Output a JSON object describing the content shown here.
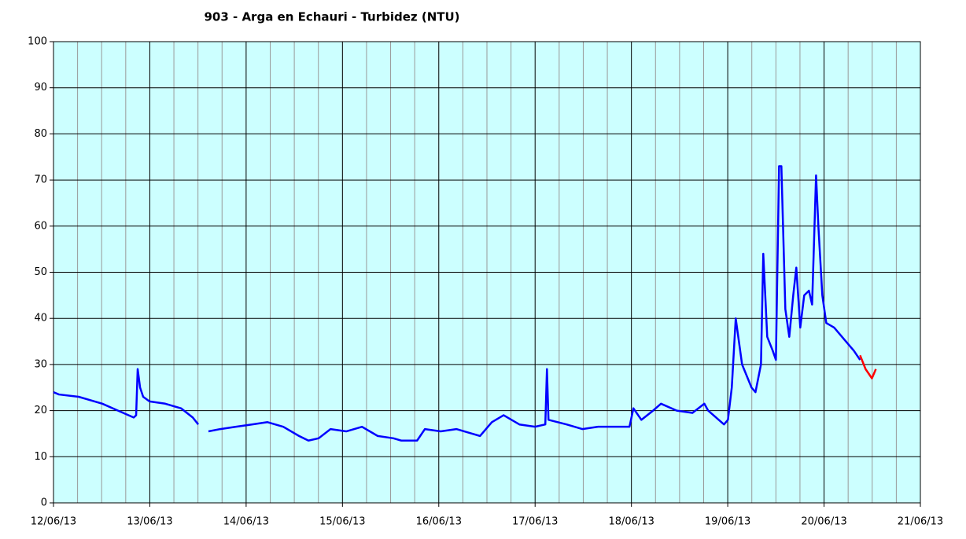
{
  "chart_data": {
    "type": "line",
    "title": "903 - Arga en Echauri - Turbidez (NTU)",
    "xlim": [
      0,
      9
    ],
    "xticks": [
      {
        "value": 0,
        "label": "12/06/13"
      },
      {
        "value": 1,
        "label": "13/06/13"
      },
      {
        "value": 2,
        "label": "14/06/13"
      },
      {
        "value": 3,
        "label": "15/06/13"
      },
      {
        "value": 4,
        "label": "16/06/13"
      },
      {
        "value": 5,
        "label": "17/06/13"
      },
      {
        "value": 6,
        "label": "18/06/13"
      },
      {
        "value": 7,
        "label": "19/06/13"
      },
      {
        "value": 8,
        "label": "20/06/13"
      },
      {
        "value": 9,
        "label": "21/06/13"
      }
    ],
    "xminorticks": [
      0.25,
      0.5,
      0.75,
      1.25,
      1.5,
      1.75,
      2.25,
      2.5,
      2.75,
      3.25,
      3.5,
      3.75,
      4.25,
      4.5,
      4.75,
      5.25,
      5.5,
      5.75,
      6.25,
      6.5,
      6.75,
      7.25,
      7.5,
      7.75,
      8.25,
      8.5,
      8.75
    ],
    "ylim": [
      0,
      100
    ],
    "yticks": [
      0,
      10,
      20,
      30,
      40,
      50,
      60,
      70,
      80,
      90,
      100
    ],
    "grid": true,
    "background": "#ccffff",
    "series": [
      {
        "color": "#0000ff",
        "x": [
          0,
          0.057,
          0.261,
          0.507,
          0.67,
          0.833,
          0.858,
          0.874,
          0.899,
          0.931,
          0.997,
          1.16,
          1.324,
          1.446,
          1.503,
          null,
          1.609,
          1.732,
          1.895,
          2.059,
          2.222,
          2.386,
          2.549,
          2.647,
          2.753,
          2.876,
          3.039,
          3.203,
          3.366,
          3.529,
          3.611,
          3.775,
          3.856,
          4.02,
          4.183,
          4.346,
          4.428,
          4.551,
          4.673,
          4.837,
          5.0,
          5.106,
          5.123,
          5.139,
          5.327,
          5.49,
          5.654,
          5.817,
          5.98,
          6.021,
          6.103,
          6.225,
          6.307,
          6.471,
          6.634,
          6.757,
          6.797,
          6.961,
          7.002,
          7.042,
          7.083,
          7.149,
          7.247,
          7.288,
          7.345,
          7.369,
          7.41,
          7.467,
          7.5,
          7.533,
          7.557,
          7.598,
          7.639,
          7.68,
          7.712,
          7.753,
          7.794,
          7.843,
          7.876,
          7.917,
          7.941,
          7.982,
          8.023,
          8.105,
          8.227,
          8.309,
          8.374
        ],
        "values": [
          24,
          23.5,
          23,
          21.5,
          20,
          18.5,
          19,
          29,
          25,
          23,
          22,
          21.5,
          20.5,
          18.5,
          17,
          null,
          15.5,
          16,
          16.5,
          17,
          17.5,
          16.5,
          14.5,
          13.5,
          14,
          16,
          15.5,
          16.5,
          14.5,
          14,
          13.5,
          13.5,
          16,
          15.5,
          16,
          15,
          14.5,
          17.5,
          19,
          17,
          16.5,
          17,
          29,
          18,
          17,
          16,
          16.5,
          16.5,
          16.5,
          20.5,
          18,
          20,
          21.5,
          20,
          19.5,
          21.5,
          20,
          17,
          18,
          25,
          40,
          30,
          25,
          24,
          30,
          54,
          36,
          33,
          31,
          73,
          73,
          42,
          36,
          45,
          51,
          38,
          45,
          46,
          43,
          71,
          60,
          45,
          39,
          38,
          35,
          33,
          31
        ]
      },
      {
        "color": "#ff0000",
        "x": [
          8.374,
          8.431,
          8.497,
          8.538
        ],
        "values": [
          32,
          29,
          27,
          29
        ]
      }
    ]
  }
}
